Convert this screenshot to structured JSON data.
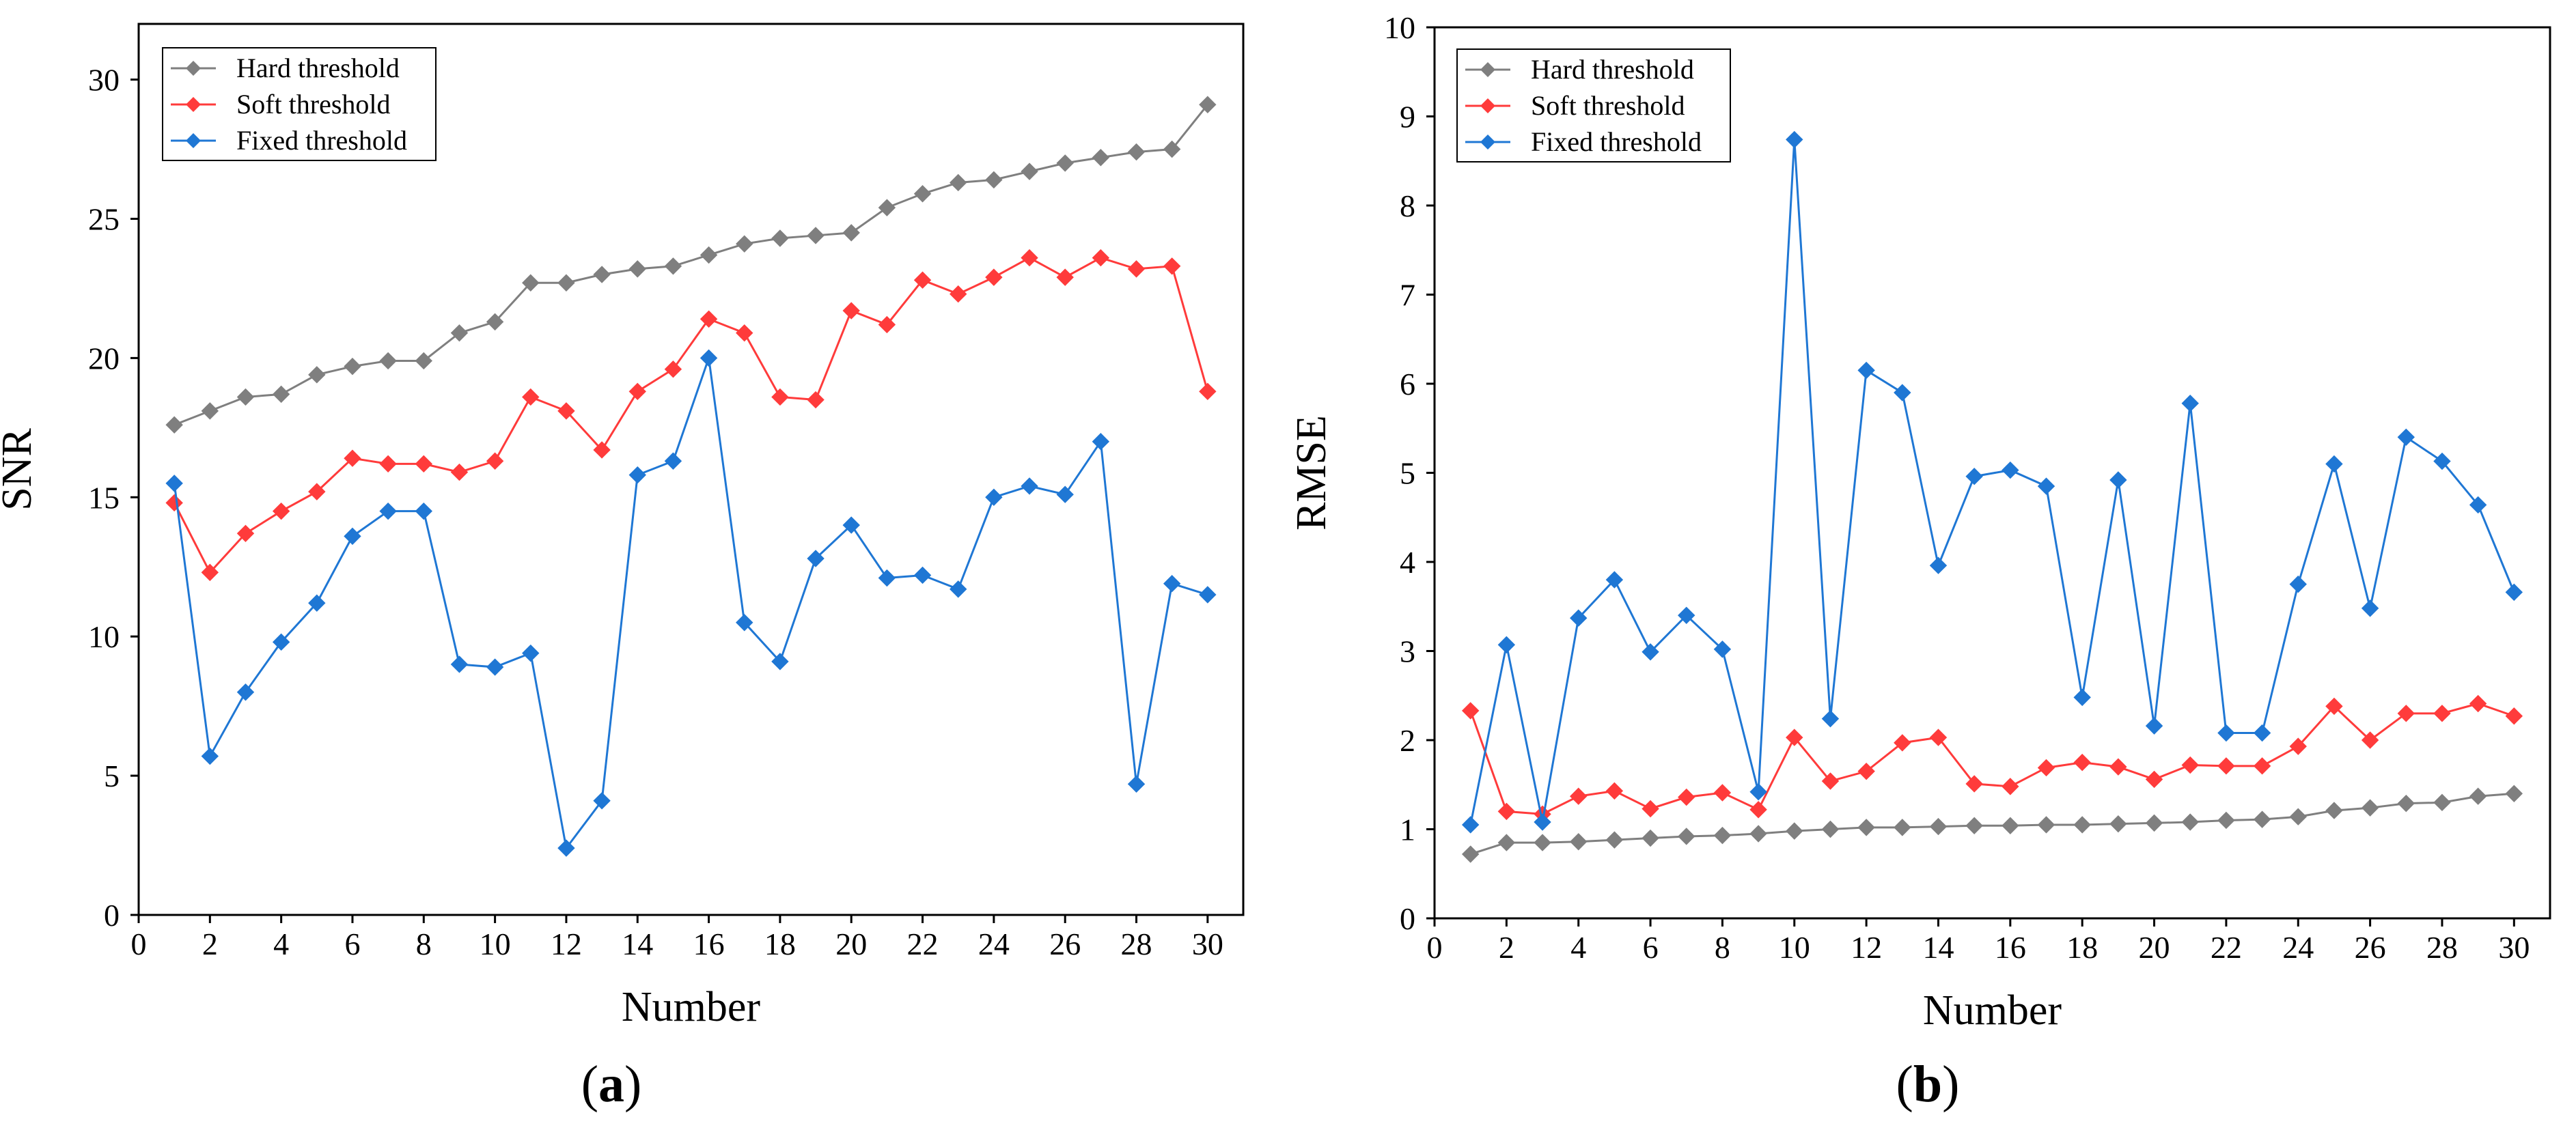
{
  "chart_data": [
    {
      "type": "line",
      "panel": "a",
      "caption_letter": "a",
      "xlabel": "Number",
      "ylabel": "SNR",
      "xlim": [
        0,
        31
      ],
      "ylim": [
        0,
        32
      ],
      "xticks": [
        0,
        2,
        4,
        6,
        8,
        10,
        12,
        14,
        16,
        18,
        20,
        22,
        24,
        26,
        28,
        30
      ],
      "yticks": [
        0,
        5,
        10,
        15,
        20,
        25,
        30
      ],
      "legend_position": "top-left",
      "x": [
        1,
        2,
        3,
        4,
        5,
        6,
        7,
        8,
        9,
        10,
        11,
        12,
        13,
        14,
        15,
        16,
        17,
        18,
        19,
        20,
        21,
        22,
        23,
        24,
        25,
        26,
        27,
        28,
        29,
        30
      ],
      "series": [
        {
          "name": "Hard threshold",
          "color": "#7f7f7f",
          "values": [
            17.6,
            18.1,
            18.6,
            18.7,
            19.4,
            19.7,
            19.9,
            19.9,
            20.9,
            21.3,
            22.7,
            22.7,
            23.0,
            23.2,
            23.3,
            23.7,
            24.1,
            24.3,
            24.4,
            24.5,
            25.4,
            25.9,
            26.3,
            26.4,
            26.7,
            27.0,
            27.2,
            27.4,
            27.5,
            29.1
          ]
        },
        {
          "name": "Soft threshold",
          "color": "#ff3b3b",
          "values": [
            14.8,
            12.3,
            13.7,
            14.5,
            15.2,
            16.4,
            16.2,
            16.2,
            15.9,
            16.3,
            18.6,
            18.1,
            16.7,
            18.8,
            19.6,
            21.4,
            20.9,
            18.6,
            18.5,
            21.7,
            21.2,
            22.8,
            22.3,
            22.9,
            23.6,
            22.9,
            23.6,
            23.2,
            23.3,
            18.8
          ]
        },
        {
          "name": "Fixed threshold",
          "color": "#1f77d4",
          "values": [
            15.5,
            5.7,
            8.0,
            9.8,
            11.2,
            13.6,
            14.5,
            14.5,
            9.0,
            8.9,
            9.4,
            2.4,
            4.1,
            15.8,
            16.3,
            20.0,
            10.5,
            9.1,
            12.8,
            14.0,
            12.1,
            12.2,
            11.7,
            15.0,
            15.4,
            15.1,
            17.0,
            4.7,
            11.9,
            11.5
          ]
        }
      ]
    },
    {
      "type": "line",
      "panel": "b",
      "caption_letter": "b",
      "xlabel": "Number",
      "ylabel": "RMSE",
      "xlim": [
        0,
        31
      ],
      "ylim": [
        0,
        10
      ],
      "xticks": [
        0,
        2,
        4,
        6,
        8,
        10,
        12,
        14,
        16,
        18,
        20,
        22,
        24,
        26,
        28,
        30
      ],
      "yticks": [
        0,
        1,
        2,
        3,
        4,
        5,
        6,
        7,
        8,
        9,
        10
      ],
      "legend_position": "top-left",
      "x": [
        1,
        2,
        3,
        4,
        5,
        6,
        7,
        8,
        9,
        10,
        11,
        12,
        13,
        14,
        15,
        16,
        17,
        18,
        19,
        20,
        21,
        22,
        23,
        24,
        25,
        26,
        27,
        28,
        29,
        30
      ],
      "series": [
        {
          "name": "Hard threshold",
          "color": "#7f7f7f",
          "values": [
            0.72,
            0.85,
            0.85,
            0.86,
            0.88,
            0.9,
            0.92,
            0.93,
            0.95,
            0.98,
            1.0,
            1.02,
            1.02,
            1.03,
            1.04,
            1.04,
            1.05,
            1.05,
            1.06,
            1.07,
            1.08,
            1.1,
            1.11,
            1.14,
            1.21,
            1.24,
            1.29,
            1.3,
            1.37,
            1.4
          ]
        },
        {
          "name": "Soft threshold",
          "color": "#ff3b3b",
          "values": [
            2.33,
            1.2,
            1.17,
            1.37,
            1.43,
            1.23,
            1.36,
            1.41,
            1.22,
            2.03,
            1.54,
            1.65,
            1.97,
            2.03,
            1.51,
            1.48,
            1.69,
            1.75,
            1.7,
            1.56,
            1.72,
            1.71,
            1.71,
            1.93,
            2.38,
            2.0,
            2.3,
            2.3,
            2.41,
            2.27
          ]
        },
        {
          "name": "Fixed threshold",
          "color": "#1f77d4",
          "values": [
            1.05,
            3.07,
            1.08,
            3.37,
            3.8,
            2.99,
            3.4,
            3.02,
            1.42,
            8.74,
            2.24,
            6.15,
            5.9,
            3.96,
            4.96,
            5.03,
            4.85,
            2.48,
            4.92,
            2.16,
            5.78,
            2.08,
            2.08,
            3.75,
            5.1,
            3.48,
            5.4,
            5.13,
            4.64,
            3.66
          ]
        }
      ]
    }
  ]
}
